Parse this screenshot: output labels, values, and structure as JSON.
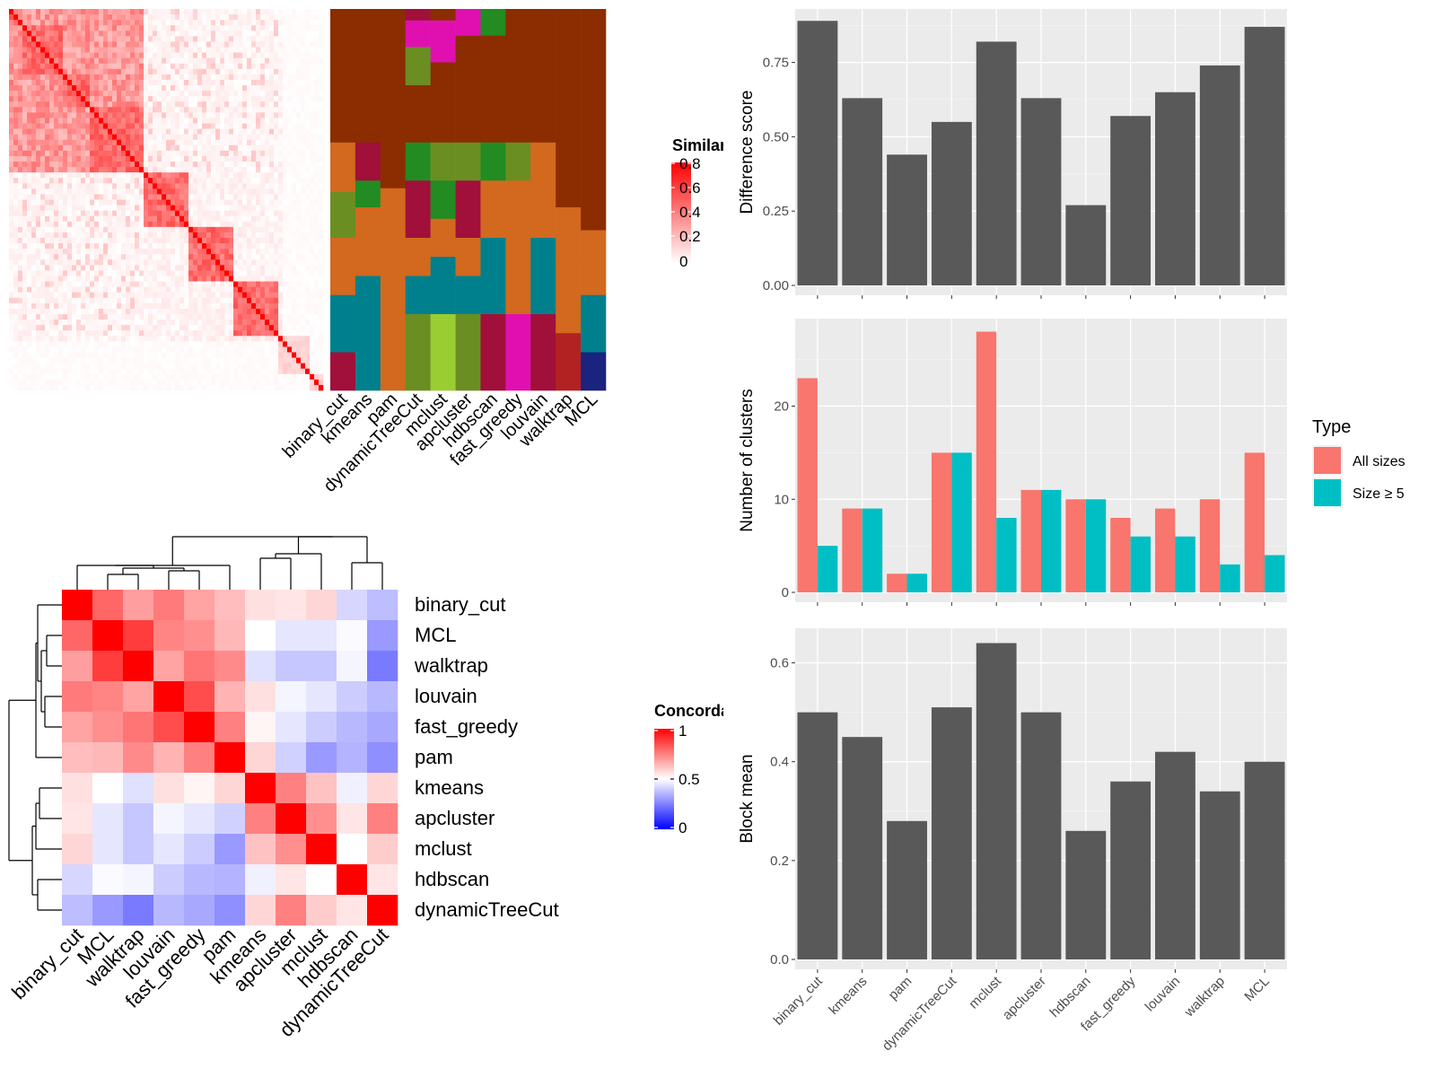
{
  "methods": [
    "binary_cut",
    "kmeans",
    "pam",
    "dynamicTreeCut",
    "mclust",
    "apcluster",
    "hdbscan",
    "fast_greedy",
    "louvain",
    "walktrap",
    "MCL"
  ],
  "similarity_panel": {
    "legend_title": "Similarity",
    "legend_ticks": [
      "0.8",
      "0.6",
      "0.4",
      "0.2",
      "0"
    ]
  },
  "concordance_panel": {
    "legend_title": "Concordance",
    "legend_ticks": [
      "1",
      "0.5",
      "0"
    ],
    "row_order": [
      "binary_cut",
      "MCL",
      "walktrap",
      "louvain",
      "fast_greedy",
      "pam",
      "kmeans",
      "apcluster",
      "mclust",
      "hdbscan",
      "dynamicTreeCut"
    ]
  },
  "chart_data": [
    {
      "type": "bar",
      "ylabel": "Difference score",
      "categories": [
        "binary_cut",
        "kmeans",
        "pam",
        "dynamicTreeCut",
        "mclust",
        "apcluster",
        "hdbscan",
        "fast_greedy",
        "louvain",
        "walktrap",
        "MCL"
      ],
      "values": [
        0.89,
        0.63,
        0.44,
        0.55,
        0.82,
        0.63,
        0.27,
        0.57,
        0.65,
        0.74,
        0.87
      ],
      "ylim": [
        0,
        0.93
      ],
      "yticks": [
        "0.00",
        "0.25",
        "0.50",
        "0.75"
      ],
      "grid": true
    },
    {
      "type": "bar",
      "ylabel": "Number of clusters",
      "categories": [
        "binary_cut",
        "kmeans",
        "pam",
        "dynamicTreeCut",
        "mclust",
        "apcluster",
        "hdbscan",
        "fast_greedy",
        "louvain",
        "walktrap",
        "MCL"
      ],
      "series": [
        {
          "name": "All sizes",
          "color": "#F8766D",
          "values": [
            23,
            9,
            2,
            15,
            28,
            11,
            10,
            8,
            9,
            10,
            15
          ]
        },
        {
          "name": "Size ≥ 5",
          "color": "#00BFC4",
          "values": [
            5,
            9,
            2,
            15,
            8,
            11,
            10,
            6,
            6,
            3,
            4
          ]
        }
      ],
      "ylim": [
        0,
        29.4
      ],
      "yticks": [
        "0",
        "10",
        "20"
      ],
      "legend_title": "Type",
      "legend_position": "right",
      "grid": true
    },
    {
      "type": "bar",
      "ylabel": "Block mean",
      "categories": [
        "binary_cut",
        "kmeans",
        "pam",
        "dynamicTreeCut",
        "mclust",
        "apcluster",
        "hdbscan",
        "fast_greedy",
        "louvain",
        "walktrap",
        "MCL"
      ],
      "values": [
        0.5,
        0.45,
        0.28,
        0.51,
        0.64,
        0.5,
        0.26,
        0.36,
        0.42,
        0.34,
        0.4
      ],
      "ylim": [
        0,
        0.67
      ],
      "yticks": [
        "0.0",
        "0.2",
        "0.4",
        "0.6"
      ],
      "grid": true
    }
  ]
}
